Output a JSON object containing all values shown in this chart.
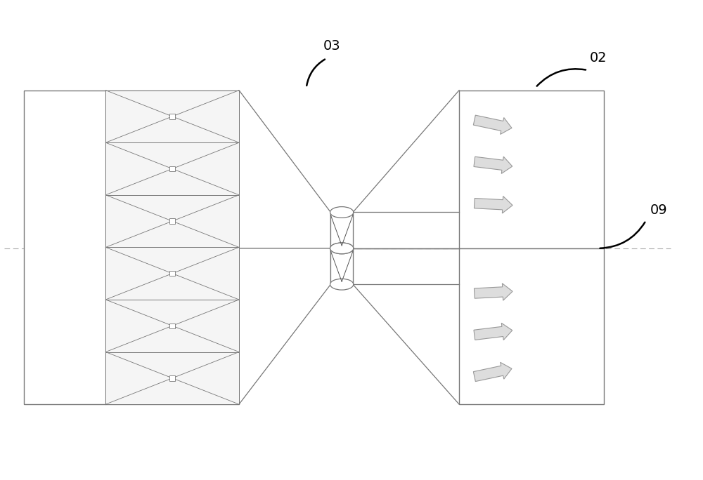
{
  "bg_color": "#ffffff",
  "line_color": "#777777",
  "dark_line": "#555555",
  "label_03": "03",
  "label_02": "02",
  "label_09": "09",
  "dashed_color": "#aaaaaa",
  "arrow_fill": "#dddddd",
  "arrow_edge": "#999999"
}
